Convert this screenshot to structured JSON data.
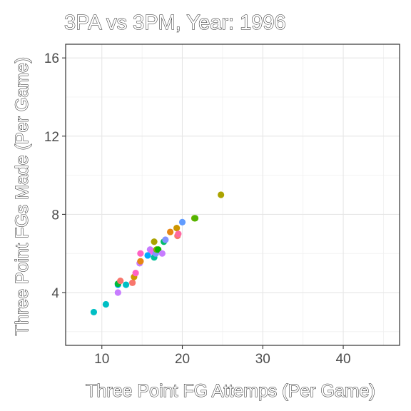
{
  "chart_data": {
    "type": "scatter",
    "title": "3PA vs 3PM, Year: 1996",
    "xlabel": "Three Point FG Attemps (Per Game)",
    "ylabel": "Three Point FGs Made (Per Game)",
    "xlim": [
      5.5,
      47
    ],
    "ylim": [
      1.3,
      16.7
    ],
    "xticks": [
      10,
      20,
      30,
      40
    ],
    "yticks": [
      4,
      8,
      12,
      16
    ],
    "grid": true,
    "legend": "none",
    "points": [
      {
        "x": 9.0,
        "y": 3.0,
        "color": "#00BFC4"
      },
      {
        "x": 10.5,
        "y": 3.4,
        "color": "#00BFC4"
      },
      {
        "x": 12.0,
        "y": 4.0,
        "color": "#C77CFF"
      },
      {
        "x": 12.0,
        "y": 4.4,
        "color": "#00A9FF"
      },
      {
        "x": 12.0,
        "y": 4.45,
        "color": "#00BA38"
      },
      {
        "x": 12.3,
        "y": 4.6,
        "color": "#F8766D"
      },
      {
        "x": 13.0,
        "y": 4.4,
        "color": "#00BFC4"
      },
      {
        "x": 13.8,
        "y": 4.5,
        "color": "#F8766D"
      },
      {
        "x": 14.0,
        "y": 4.8,
        "color": "#CD9600"
      },
      {
        "x": 14.2,
        "y": 5.0,
        "color": "#FF61C3"
      },
      {
        "x": 14.7,
        "y": 5.5,
        "color": "#C77CFF"
      },
      {
        "x": 14.8,
        "y": 5.6,
        "color": "#E68613"
      },
      {
        "x": 14.8,
        "y": 6.0,
        "color": "#FF61C3"
      },
      {
        "x": 15.7,
        "y": 5.9,
        "color": "#00A9FF"
      },
      {
        "x": 16.0,
        "y": 6.2,
        "color": "#C77CFF"
      },
      {
        "x": 16.3,
        "y": 6.1,
        "color": "#ED68ED"
      },
      {
        "x": 16.5,
        "y": 6.6,
        "color": "#ABA300"
      },
      {
        "x": 16.5,
        "y": 5.8,
        "color": "#00C19A"
      },
      {
        "x": 16.7,
        "y": 6.0,
        "color": "#8494FF"
      },
      {
        "x": 16.8,
        "y": 6.2,
        "color": "#7CAE00"
      },
      {
        "x": 17.0,
        "y": 6.2,
        "color": "#0CB702"
      },
      {
        "x": 17.5,
        "y": 6.0,
        "color": "#C77CFF"
      },
      {
        "x": 17.7,
        "y": 6.6,
        "color": "#00BE67"
      },
      {
        "x": 17.9,
        "y": 6.7,
        "color": "#8494FF"
      },
      {
        "x": 18.5,
        "y": 7.1,
        "color": "#E68613"
      },
      {
        "x": 19.3,
        "y": 7.3,
        "color": "#CD9600"
      },
      {
        "x": 19.4,
        "y": 6.9,
        "color": "#F8766D"
      },
      {
        "x": 19.5,
        "y": 7.0,
        "color": "#FF68A1"
      },
      {
        "x": 20.0,
        "y": 7.6,
        "color": "#619CFF"
      },
      {
        "x": 21.5,
        "y": 7.8,
        "color": "#7CAE00"
      },
      {
        "x": 21.6,
        "y": 7.8,
        "color": "#53B400"
      },
      {
        "x": 24.8,
        "y": 9.0,
        "color": "#ABA300"
      }
    ]
  }
}
